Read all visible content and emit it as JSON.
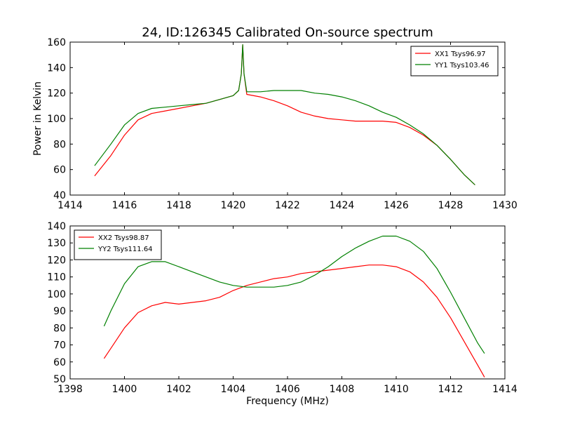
{
  "figure": {
    "title": "24, ID:126345 Calibrated On-source spectrum",
    "ylabel_top": "Power in Kelvin",
    "xlabel_bottom": "Frequency (MHz)"
  },
  "chart_data": [
    {
      "type": "line",
      "title": "24, ID:126345 Calibrated On-source spectrum",
      "xlabel": "",
      "ylabel": "Power in Kelvin",
      "xlim": [
        1414,
        1430
      ],
      "ylim": [
        40,
        160
      ],
      "xticks": [
        1414,
        1416,
        1418,
        1420,
        1422,
        1424,
        1426,
        1428,
        1430
      ],
      "yticks": [
        40,
        60,
        80,
        100,
        120,
        140,
        160
      ],
      "legend_position": "top-right",
      "grid": false,
      "series": [
        {
          "name": "XX1 Tsys96.97",
          "color": "#ff0000",
          "x": [
            1414.9,
            1415.5,
            1416.0,
            1416.5,
            1417.0,
            1417.5,
            1418.0,
            1418.5,
            1419.0,
            1419.5,
            1420.0,
            1420.2,
            1420.3,
            1420.35,
            1420.4,
            1420.5,
            1421.0,
            1421.5,
            1422.0,
            1422.5,
            1423.0,
            1423.5,
            1424.0,
            1424.5,
            1425.0,
            1425.5,
            1426.0,
            1426.5,
            1427.0,
            1427.5,
            1428.0,
            1428.5,
            1428.9
          ],
          "y": [
            55,
            71,
            87,
            99,
            104,
            106,
            108,
            110,
            112,
            115,
            118,
            122,
            135,
            158,
            135,
            119,
            117,
            114,
            110,
            105,
            102,
            100,
            99,
            98,
            98,
            98,
            97,
            93,
            87,
            79,
            68,
            56,
            48
          ]
        },
        {
          "name": "YY1 Tsys103.46",
          "color": "#008000",
          "x": [
            1414.9,
            1415.5,
            1416.0,
            1416.5,
            1417.0,
            1417.5,
            1418.0,
            1418.5,
            1419.0,
            1419.5,
            1420.0,
            1420.2,
            1420.3,
            1420.35,
            1420.4,
            1420.5,
            1421.0,
            1421.5,
            1422.0,
            1422.5,
            1423.0,
            1423.5,
            1424.0,
            1424.5,
            1425.0,
            1425.5,
            1426.0,
            1426.5,
            1427.0,
            1427.5,
            1428.0,
            1428.5,
            1428.9
          ],
          "y": [
            63,
            80,
            95,
            104,
            108,
            109,
            110,
            111,
            112,
            115,
            118,
            122,
            135,
            158,
            135,
            121,
            121,
            122,
            122,
            122,
            120,
            119,
            117,
            114,
            110,
            105,
            101,
            95,
            88,
            79,
            68,
            56,
            48
          ]
        }
      ]
    },
    {
      "type": "line",
      "title": "",
      "xlabel": "Frequency (MHz)",
      "ylabel": "",
      "xlim": [
        1398,
        1414
      ],
      "ylim": [
        50,
        140
      ],
      "xticks": [
        1398,
        1400,
        1402,
        1404,
        1406,
        1408,
        1410,
        1412,
        1414
      ],
      "yticks": [
        50,
        60,
        70,
        80,
        90,
        100,
        110,
        120,
        130,
        140
      ],
      "legend_position": "top-left",
      "grid": false,
      "series": [
        {
          "name": "XX2 Tsys98.87",
          "color": "#ff0000",
          "x": [
            1399.25,
            1399.5,
            1400.0,
            1400.5,
            1401.0,
            1401.5,
            1402.0,
            1402.5,
            1403.0,
            1403.5,
            1404.0,
            1404.5,
            1405.0,
            1405.5,
            1406.0,
            1406.5,
            1407.0,
            1407.5,
            1408.0,
            1408.5,
            1409.0,
            1409.5,
            1410.0,
            1410.5,
            1411.0,
            1411.5,
            1412.0,
            1412.5,
            1413.0,
            1413.25
          ],
          "y": [
            62,
            68,
            80,
            89,
            93,
            95,
            94,
            95,
            96,
            98,
            102,
            105,
            107,
            109,
            110,
            112,
            113,
            114,
            115,
            116,
            117,
            117,
            116,
            113,
            107,
            98,
            86,
            72,
            58,
            51
          ]
        },
        {
          "name": "YY2 Tsys111.64",
          "color": "#008000",
          "x": [
            1399.25,
            1399.5,
            1400.0,
            1400.5,
            1401.0,
            1401.5,
            1402.0,
            1402.5,
            1403.0,
            1403.5,
            1404.0,
            1404.5,
            1405.0,
            1405.5,
            1406.0,
            1406.5,
            1407.0,
            1407.5,
            1408.0,
            1408.5,
            1409.0,
            1409.5,
            1410.0,
            1410.5,
            1411.0,
            1411.5,
            1412.0,
            1412.5,
            1413.0,
            1413.25
          ],
          "y": [
            81,
            90,
            106,
            116,
            119,
            119,
            116,
            113,
            110,
            107,
            105,
            104,
            104,
            104,
            105,
            107,
            111,
            116,
            122,
            127,
            131,
            134,
            134,
            131,
            125,
            115,
            101,
            86,
            71,
            65
          ]
        }
      ]
    }
  ]
}
